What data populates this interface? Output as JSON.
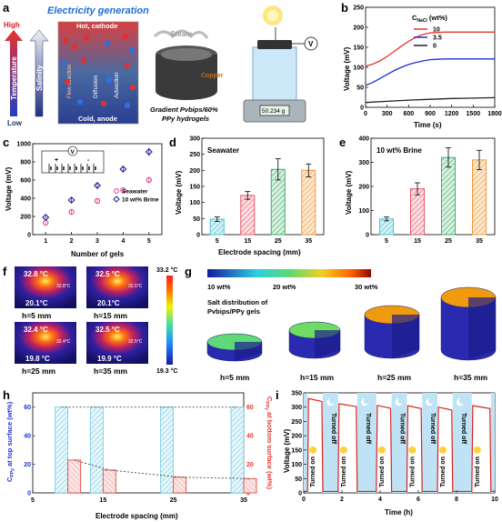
{
  "panels": {
    "a": {
      "letter": "a",
      "title": "Electricity generation",
      "high": "High",
      "low": "Low",
      "temperature": "Temperature",
      "salinity": "Salinity",
      "hot": "Hot, cathode",
      "cold": "Cold, anode",
      "flow": "Flow direction",
      "diffusion": "Diffusion",
      "advection": "Advection",
      "steam": "Steam",
      "copper": "Copper",
      "caption": [
        "Gradient Pvbips/60%",
        "PPy hydrogels"
      ],
      "scale": "50.234 g",
      "voltmeter": "V"
    },
    "b": {
      "letter": "b",
      "legend_title": "C",
      "legend_sub": "NaCl",
      "legend_unit": " (wt%)",
      "ylabel": "Voltage (mV)",
      "xlabel": "Time (s)"
    },
    "c": {
      "letter": "c",
      "ylabel": "Voltage (mV)",
      "xlabel": "Number of gels",
      "inset_v": "V",
      "inset_plus": "+",
      "inset_minus": "-"
    },
    "d": {
      "letter": "d",
      "label": "Seawater",
      "ylabel": "Voltage (mV)",
      "xlabel": "Electrode spacing (mm)"
    },
    "e": {
      "letter": "e",
      "label": "10 wt% Brine",
      "ylabel": "Voltage (mV)"
    },
    "f": {
      "letter": "f",
      "scale_max": "33.2 °C",
      "scale_min": "19.3 °C",
      "images": [
        {
          "top": "32.8 °C",
          "bottom": "20.1°C",
          "spot": "32.8°C",
          "label": "h=5 mm"
        },
        {
          "top": "32.5 °C",
          "bottom": "20.1°C",
          "spot": "32.5°C",
          "label": "h=15 mm"
        },
        {
          "top": "32.4 °C",
          "bottom": "19.8 °C",
          "spot": "32.4°C",
          "label": "h=25 mm"
        },
        {
          "top": "32.5 °C",
          "bottom": "19.9 °C",
          "spot": "32.5°C",
          "label": "h=35 mm"
        }
      ]
    },
    "g": {
      "letter": "g",
      "cb_labels": [
        "10 wt%",
        "20 wt%",
        "30 wt%"
      ],
      "title": [
        "Salt distribution of",
        "Pvbips/PPy gels"
      ],
      "gels": [
        "h=5 mm",
        "h=15 mm",
        "h=25 mm",
        "h=35 mm"
      ]
    },
    "h": {
      "letter": "h",
      "xlabel": "Electrode spacing (mm)",
      "ylabel_left_main": "C",
      "ylabel_left_sub": "PPy",
      "ylabel_left_rest": " at top surface (wt%)",
      "ylabel_right_main": "C",
      "ylabel_right_sub": "PPy",
      "ylabel_right_rest": " at bottom surface (wt%)"
    },
    "i": {
      "letter": "i",
      "ylabel": "Voltage (mV)",
      "xlabel": "Time (h)",
      "on": "Turned on",
      "off": "Turned off"
    }
  },
  "colors": {
    "red": "#e8372c",
    "blue": "#1f2fd6",
    "pink": "#e64b9a",
    "navy": "#2a2a9c",
    "cyan": "#6cc7dd",
    "teal": "#4dc2cf"
  },
  "chart_data": [
    {
      "id": "b",
      "type": "line",
      "xlim": [
        0,
        1800
      ],
      "ylim": [
        0,
        250
      ],
      "xticks": [
        0,
        300,
        600,
        900,
        1200,
        1500,
        1800
      ],
      "yticks": [
        0,
        50,
        100,
        150,
        200,
        250
      ],
      "series": [
        {
          "name": "10",
          "color": "#e8372c",
          "x": [
            0,
            100,
            200,
            300,
            400,
            500,
            600,
            700,
            800,
            900,
            1000,
            1100,
            1200,
            1500,
            1800
          ],
          "y": [
            103,
            108,
            116,
            127,
            140,
            153,
            165,
            175,
            182,
            186,
            187,
            188,
            188,
            188,
            188
          ]
        },
        {
          "name": "3.5",
          "color": "#1f2fd6",
          "x": [
            0,
            100,
            200,
            300,
            400,
            500,
            600,
            700,
            800,
            900,
            1000,
            1100,
            1200,
            1500,
            1800
          ],
          "y": [
            55,
            62,
            72,
            82,
            92,
            100,
            107,
            112,
            116,
            119,
            120,
            121,
            121,
            121,
            121
          ]
        },
        {
          "name": "0",
          "color": "#222222",
          "x": [
            0,
            300,
            600,
            900,
            1200,
            1500,
            1800
          ],
          "y": [
            12,
            15,
            18,
            20,
            22,
            23,
            24
          ]
        }
      ]
    },
    {
      "id": "c",
      "type": "scatter",
      "xlim": [
        0.5,
        5.5
      ],
      "ylim": [
        0,
        1000
      ],
      "xticks": [
        1,
        2,
        3,
        4,
        5
      ],
      "yticks": [
        0,
        200,
        400,
        600,
        800,
        1000
      ],
      "series": [
        {
          "name": "Seawater",
          "color": "#e64b9a",
          "x": [
            1,
            2,
            3,
            4,
            5
          ],
          "y": [
            130,
            250,
            370,
            490,
            600
          ],
          "err": [
            15,
            20,
            25,
            25,
            35
          ]
        },
        {
          "name": "10 wt% Brine",
          "color": "#2a2a9c",
          "x": [
            1,
            2,
            3,
            4,
            5
          ],
          "y": [
            190,
            380,
            540,
            720,
            910
          ],
          "err": [
            15,
            25,
            30,
            30,
            45
          ]
        }
      ]
    },
    {
      "id": "d",
      "type": "bar",
      "categories": [
        "5",
        "15",
        "25",
        "35"
      ],
      "values": [
        48,
        122,
        203,
        200
      ],
      "errors": [
        7,
        12,
        33,
        20
      ],
      "ylim": [
        0,
        300
      ],
      "yticks": [
        0,
        50,
        100,
        150,
        200,
        250,
        300
      ],
      "colors": [
        "#4dc2cf",
        "#e8546a",
        "#3cae6a",
        "#f09a3a"
      ]
    },
    {
      "id": "e",
      "type": "bar",
      "categories": [
        "5",
        "15",
        "25",
        "35"
      ],
      "values": [
        65,
        190,
        320,
        310
      ],
      "errors": [
        8,
        25,
        40,
        40
      ],
      "ylim": [
        0,
        400
      ],
      "yticks": [
        0,
        100,
        200,
        300,
        400
      ],
      "colors": [
        "#4dc2cf",
        "#e8546a",
        "#3cae6a",
        "#f09a3a"
      ]
    },
    {
      "id": "h",
      "type": "bar",
      "x": [
        10,
        15,
        25,
        35
      ],
      "xlim": [
        5,
        35
      ],
      "xticks": [
        5,
        15,
        25,
        35
      ],
      "ylim": [
        0,
        70
      ],
      "yticks": [
        0,
        20,
        40,
        60
      ],
      "top_values": [
        60,
        60,
        60,
        60
      ],
      "bottom_values": [
        23,
        16,
        11,
        10
      ],
      "note": ""
    },
    {
      "id": "i",
      "type": "line",
      "xlim": [
        0,
        10
      ],
      "ylim": [
        0,
        350
      ],
      "xticks": [
        0,
        2,
        4,
        6,
        8,
        10
      ],
      "yticks": [
        0,
        50,
        100,
        150,
        200,
        250,
        300,
        350
      ],
      "cycles": [
        {
          "on": 0.2,
          "off": 1.0,
          "peak": 330
        },
        {
          "on": 1.8,
          "off": 2.8,
          "peak": 312
        },
        {
          "on": 3.8,
          "off": 4.6,
          "peak": 306
        },
        {
          "on": 5.4,
          "off": 6.2,
          "peak": 305
        },
        {
          "on": 7.0,
          "off": 7.8,
          "peak": 300
        },
        {
          "on": 8.8,
          "off": 9.8,
          "peak": 305
        }
      ],
      "baseline": 5
    }
  ]
}
